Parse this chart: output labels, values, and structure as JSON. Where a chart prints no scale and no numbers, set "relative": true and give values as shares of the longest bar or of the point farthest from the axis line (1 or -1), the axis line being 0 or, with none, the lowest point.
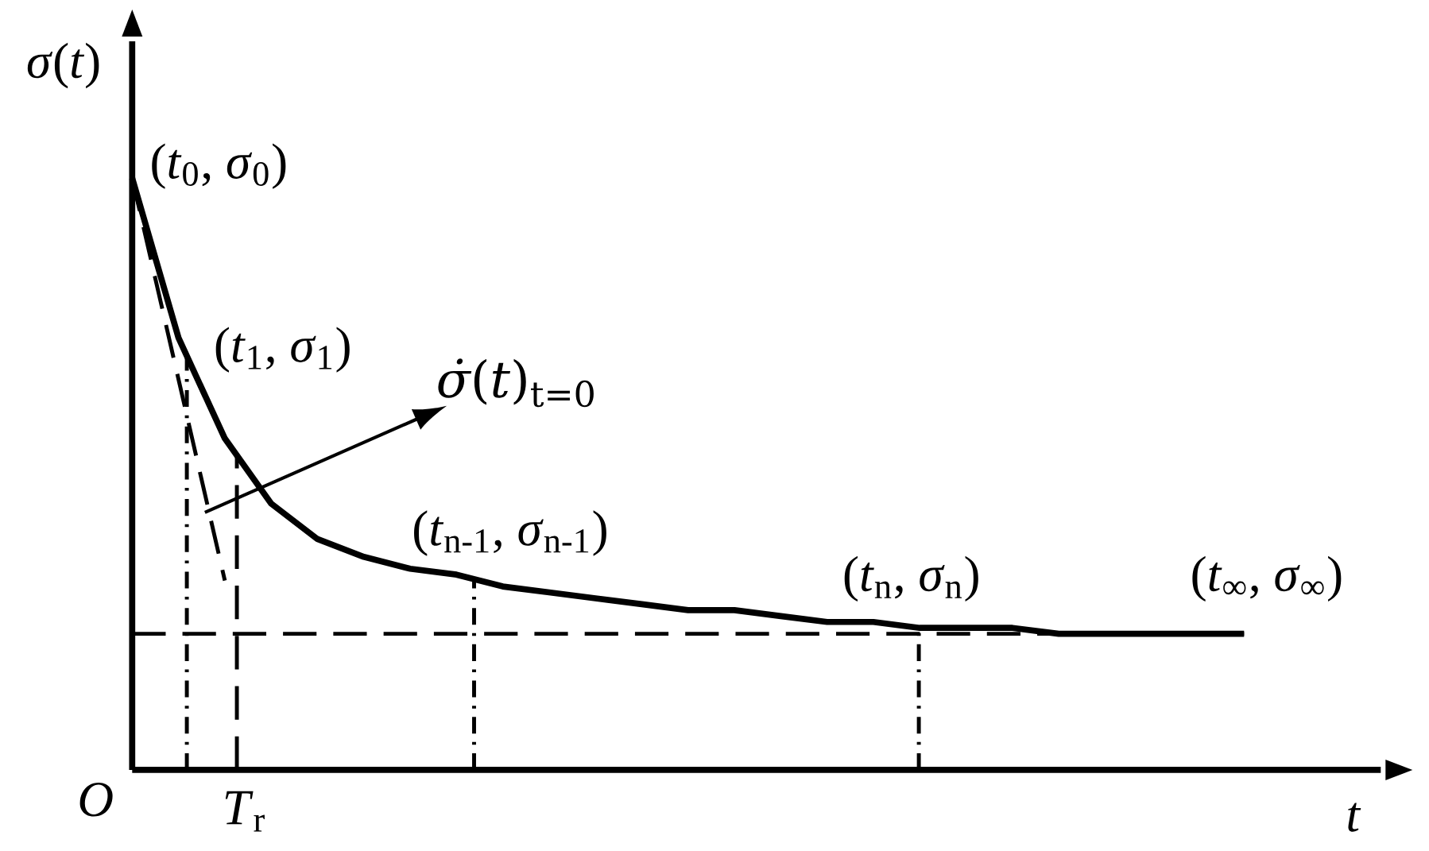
{
  "chart_data": {
    "type": "line",
    "relative": true,
    "xlabel": "*t*",
    "ylabel": "*σ*(*t*)",
    "categories": [
      null,
      null,
      null,
      null,
      null,
      null,
      null,
      null,
      null,
      null,
      null,
      null,
      null,
      null,
      null,
      null,
      null,
      null,
      null,
      null,
      null,
      null,
      null,
      null,
      null
    ],
    "series": [
      {
        "color": "#000000",
        "line_style": "solid",
        "values": [
          1,
          0.73,
          0.56,
          0.45,
          0.39,
          0.36,
          0.34,
          0.33,
          0.31,
          0.3,
          0.29,
          0.28,
          0.27,
          0.27,
          0.26,
          0.25,
          0.25,
          0.24,
          0.24,
          0.24,
          0.23,
          0.23,
          0.23,
          0.23,
          0.23
        ]
      },
      {
        "color": "#000000",
        "line_style": "dashed",
        "values": [
          1,
          0.66,
          0.32,
          null,
          null,
          null,
          null,
          null,
          null,
          null,
          null,
          null,
          null,
          null,
          null,
          null,
          null,
          null,
          null,
          null,
          null,
          null,
          null,
          null,
          null
        ]
      }
    ],
    "ref_lines": [
      {
        "axis": "y",
        "value": 0.23,
        "line_style": "dashed",
        "color": "#000000"
      }
    ],
    "annotations": [
      "(*t*$_{0}$, *σ*$_{0}$)",
      "(*t*$_{1}$, *σ*$_{1}$)",
      "*σ̇*(*t*)$_{t=0}$",
      "(*t*$_{n-1}$, *σ*$_{n-1}$)",
      "(*t*$_{n}$, *σ*$_{n}$)",
      "(*t*$_{∞}$, *σ*$_{∞}$)",
      "*O*",
      "*T*$_{r}$"
    ]
  }
}
